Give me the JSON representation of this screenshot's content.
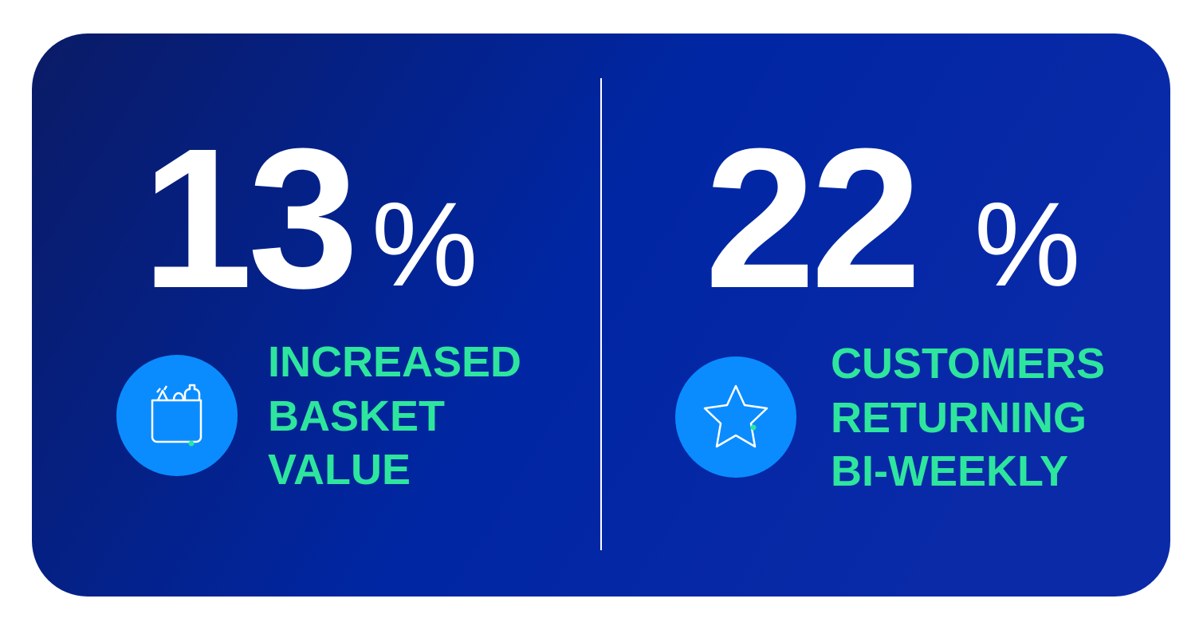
{
  "stats": [
    {
      "value": 13,
      "unit": "%",
      "label": [
        "INCREASED",
        "BASKET",
        "VALUE"
      ]
    },
    {
      "value": 22,
      "unit": "%",
      "label": [
        "CUSTOMERS",
        "RETURNING",
        "BI-WEEKLY"
      ]
    }
  ]
}
